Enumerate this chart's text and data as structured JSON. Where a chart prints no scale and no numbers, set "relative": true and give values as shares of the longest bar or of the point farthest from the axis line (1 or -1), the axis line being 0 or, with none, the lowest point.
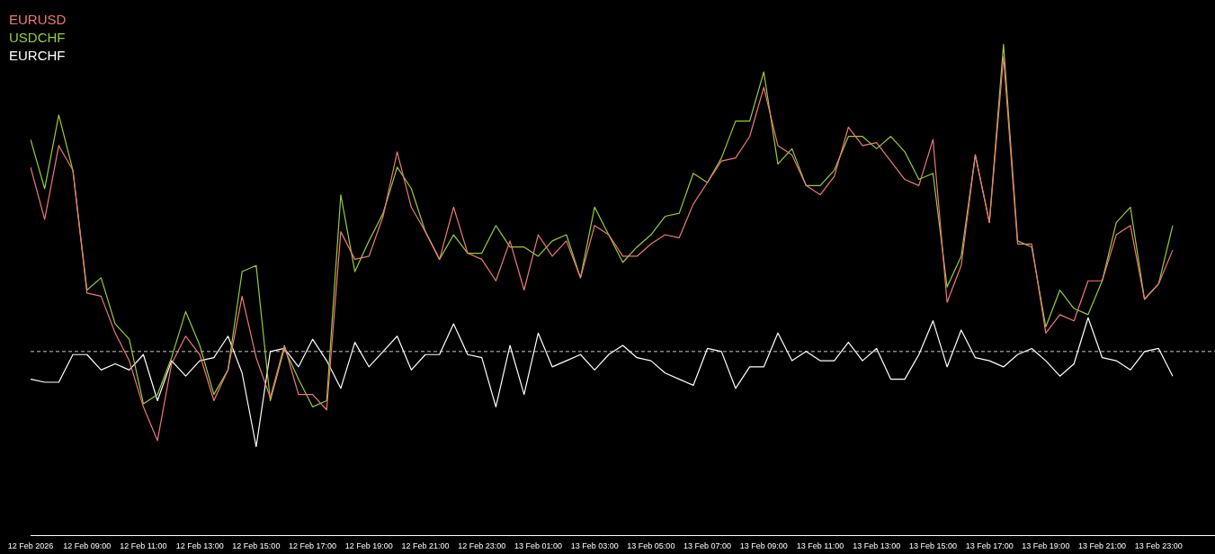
{
  "chart_data": {
    "type": "line",
    "relative": true,
    "legend": "top left",
    "x": [
      "2026-02-12T07:00",
      "2026-02-12T07:30",
      "2026-02-12T08:00",
      "2026-02-12T08:30",
      "2026-02-12T09:00",
      "2026-02-12T09:30",
      "2026-02-12T10:00",
      "2026-02-12T10:30",
      "2026-02-12T11:00",
      "2026-02-12T11:30",
      "2026-02-12T12:00",
      "2026-02-12T12:30",
      "2026-02-12T13:00",
      "2026-02-12T13:30",
      "2026-02-12T14:00",
      "2026-02-12T14:30",
      "2026-02-12T15:00",
      "2026-02-12T15:30",
      "2026-02-12T16:00",
      "2026-02-12T16:30",
      "2026-02-12T17:00",
      "2026-02-12T17:30",
      "2026-02-12T18:00",
      "2026-02-12T18:30",
      "2026-02-12T19:00",
      "2026-02-12T19:30",
      "2026-02-12T20:00",
      "2026-02-12T20:30",
      "2026-02-12T21:00",
      "2026-02-12T21:30",
      "2026-02-12T22:00",
      "2026-02-12T22:30",
      "2026-02-12T23:00",
      "2026-02-12T23:30",
      "2026-02-13T00:00",
      "2026-02-13T00:30",
      "2026-02-13T01:00",
      "2026-02-13T01:30",
      "2026-02-13T02:00",
      "2026-02-13T02:30",
      "2026-02-13T03:00",
      "2026-02-13T03:30",
      "2026-02-13T04:00",
      "2026-02-13T04:30",
      "2026-02-13T05:00",
      "2026-02-13T05:30",
      "2026-02-13T06:00",
      "2026-02-13T06:30",
      "2026-02-13T07:00",
      "2026-02-13T07:30",
      "2026-02-13T08:00",
      "2026-02-13T08:30",
      "2026-02-13T09:00",
      "2026-02-13T09:30",
      "2026-02-13T10:00",
      "2026-02-13T10:30",
      "2026-02-13T11:00",
      "2026-02-13T11:30",
      "2026-02-13T12:00",
      "2026-02-13T12:30",
      "2026-02-13T13:00",
      "2026-02-13T13:30",
      "2026-02-13T14:00",
      "2026-02-13T14:30",
      "2026-02-13T15:00",
      "2026-02-13T15:30",
      "2026-02-13T16:00",
      "2026-02-13T16:30",
      "2026-02-13T17:00",
      "2026-02-13T17:30",
      "2026-02-13T18:00",
      "2026-02-13T18:30",
      "2026-02-13T19:00",
      "2026-02-13T19:30",
      "2026-02-13T20:00",
      "2026-02-13T20:30",
      "2026-02-13T21:00",
      "2026-02-13T21:30",
      "2026-02-13T22:00",
      "2026-02-13T22:30",
      "2026-02-13T23:00",
      "2026-02-13T23:30"
    ],
    "xlim": [
      "2026-02-12T07:00",
      "2026-02-14T01:00"
    ],
    "xticks": [
      {
        "value": "2026-02-12T07:00",
        "label": "12 Feb 2026"
      },
      {
        "value": "2026-02-12T09:00",
        "label": "12 Feb 09:00"
      },
      {
        "value": "2026-02-12T11:00",
        "label": "12 Feb 11:00"
      },
      {
        "value": "2026-02-12T13:00",
        "label": "12 Feb 13:00"
      },
      {
        "value": "2026-02-12T15:00",
        "label": "12 Feb 15:00"
      },
      {
        "value": "2026-02-12T17:00",
        "label": "12 Feb 17:00"
      },
      {
        "value": "2026-02-12T19:00",
        "label": "12 Feb 19:00"
      },
      {
        "value": "2026-02-12T21:00",
        "label": "12 Feb 21:00"
      },
      {
        "value": "2026-02-12T23:00",
        "label": "12 Feb 23:00"
      },
      {
        "value": "2026-02-13T01:00",
        "label": "13 Feb 01:00"
      },
      {
        "value": "2026-02-13T03:00",
        "label": "13 Feb 03:00"
      },
      {
        "value": "2026-02-13T05:00",
        "label": "13 Feb 05:00"
      },
      {
        "value": "2026-02-13T07:00",
        "label": "13 Feb 07:00"
      },
      {
        "value": "2026-02-13T09:00",
        "label": "13 Feb 09:00"
      },
      {
        "value": "2026-02-13T11:00",
        "label": "13 Feb 11:00"
      },
      {
        "value": "2026-02-13T13:00",
        "label": "13 Feb 13:00"
      },
      {
        "value": "2026-02-13T15:00",
        "label": "13 Feb 15:00"
      },
      {
        "value": "2026-02-13T17:00",
        "label": "13 Feb 17:00"
      },
      {
        "value": "2026-02-13T19:00",
        "label": "13 Feb 19:00"
      },
      {
        "value": "2026-02-13T21:00",
        "label": "13 Feb 21:00"
      },
      {
        "value": "2026-02-13T23:00",
        "label": "13 Feb 23:00"
      }
    ],
    "ref_lines": [
      {
        "axis": "y",
        "value": 0,
        "color": "#c8c8c8",
        "line_style": "dashed"
      }
    ],
    "series": [
      {
        "name": "EURUSD",
        "color": "#f07878",
        "values": [
          0.6,
          0.43,
          0.67,
          0.59,
          0.19,
          0.18,
          0.06,
          -0.03,
          -0.18,
          -0.29,
          -0.04,
          0.05,
          -0.01,
          -0.16,
          -0.06,
          0.18,
          -0.02,
          -0.15,
          0.02,
          -0.14,
          -0.14,
          -0.19,
          0.39,
          0.3,
          0.31,
          0.44,
          0.65,
          0.47,
          0.39,
          0.3,
          0.47,
          0.32,
          0.3,
          0.23,
          0.36,
          0.2,
          0.38,
          0.31,
          0.36,
          0.24,
          0.41,
          0.38,
          0.31,
          0.31,
          0.35,
          0.38,
          0.37,
          0.48,
          0.55,
          0.62,
          0.63,
          0.7,
          0.86,
          0.67,
          0.64,
          0.54,
          0.51,
          0.57,
          0.73,
          0.67,
          0.68,
          0.62,
          0.56,
          0.54,
          0.69,
          0.16,
          0.28,
          0.64,
          0.42,
          0.96,
          0.35,
          0.35,
          0.06,
          0.12,
          0.1,
          0.23,
          0.23,
          0.38,
          0.41,
          0.17,
          0.22,
          0.33
        ]
      },
      {
        "name": "USDCHF",
        "color": "#9acd32",
        "values": [
          0.69,
          0.53,
          0.77,
          0.59,
          0.2,
          0.24,
          0.09,
          0.04,
          -0.17,
          -0.14,
          -0.02,
          0.13,
          0.02,
          -0.14,
          -0.06,
          0.26,
          0.28,
          -0.16,
          0.01,
          -0.09,
          -0.18,
          -0.16,
          0.51,
          0.26,
          0.36,
          0.45,
          0.6,
          0.53,
          0.39,
          0.3,
          0.38,
          0.32,
          0.32,
          0.41,
          0.34,
          0.34,
          0.31,
          0.36,
          0.38,
          0.24,
          0.47,
          0.38,
          0.29,
          0.34,
          0.38,
          0.44,
          0.45,
          0.58,
          0.55,
          0.63,
          0.75,
          0.75,
          0.91,
          0.61,
          0.66,
          0.54,
          0.54,
          0.59,
          0.7,
          0.7,
          0.66,
          0.7,
          0.65,
          0.56,
          0.58,
          0.21,
          0.31,
          0.64,
          0.42,
          1.0,
          0.36,
          0.34,
          0.08,
          0.2,
          0.14,
          0.12,
          0.23,
          0.42,
          0.47,
          0.17,
          0.22,
          0.41
        ]
      },
      {
        "name": "EURCHF",
        "color": "#ffffff",
        "values": [
          -0.09,
          -0.1,
          -0.1,
          -0.01,
          -0.01,
          -0.06,
          -0.04,
          -0.06,
          -0.01,
          -0.16,
          -0.03,
          -0.08,
          -0.03,
          -0.02,
          0.05,
          -0.07,
          -0.31,
          0.0,
          0.01,
          -0.05,
          0.04,
          -0.03,
          -0.12,
          0.03,
          -0.05,
          0.0,
          0.05,
          -0.06,
          -0.01,
          -0.01,
          0.09,
          -0.01,
          -0.02,
          -0.18,
          0.02,
          -0.14,
          0.06,
          -0.05,
          -0.03,
          -0.01,
          -0.06,
          -0.01,
          0.02,
          -0.02,
          -0.03,
          -0.07,
          -0.09,
          -0.11,
          0.01,
          0.0,
          -0.12,
          -0.05,
          -0.05,
          0.06,
          -0.03,
          0.0,
          -0.03,
          -0.03,
          0.03,
          -0.03,
          0.01,
          -0.09,
          -0.09,
          -0.01,
          0.1,
          -0.05,
          0.07,
          -0.02,
          -0.03,
          -0.05,
          -0.01,
          0.01,
          -0.03,
          -0.08,
          -0.04,
          0.11,
          -0.02,
          -0.03,
          -0.06,
          0.0,
          0.01,
          -0.08
        ]
      }
    ]
  }
}
